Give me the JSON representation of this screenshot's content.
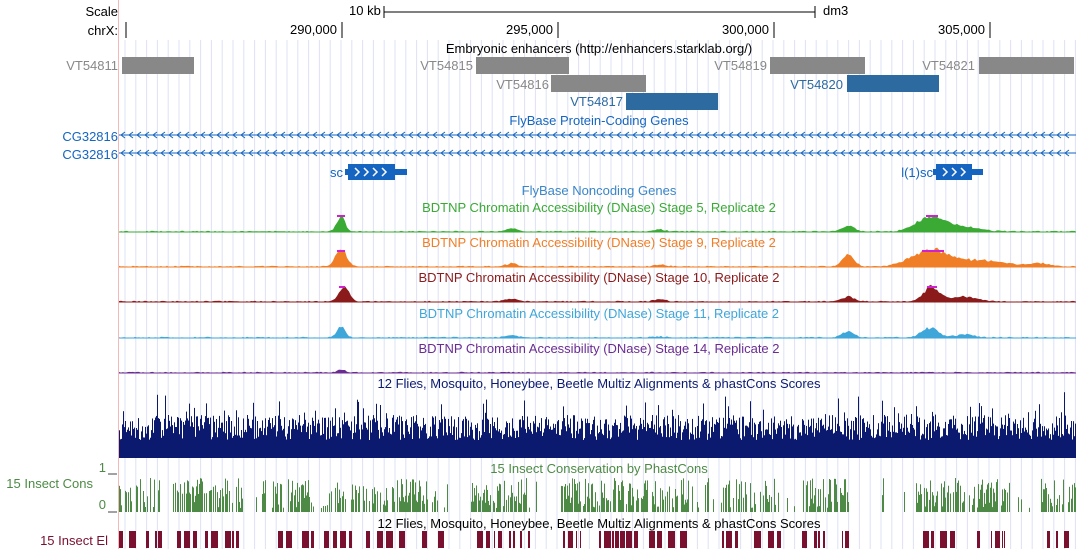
{
  "scale": {
    "label": "Scale",
    "bar_text": "10 kb",
    "assembly": "dm3"
  },
  "ruler": {
    "chrom_label": "chrX:",
    "ticks": [
      "290,000",
      "295,000",
      "300,000",
      "305,000"
    ]
  },
  "enhancers": {
    "title": "Embryonic enhancers (http://enhancers.starklab.org/)",
    "items": [
      {
        "name": "VT54811",
        "color": "#888888"
      },
      {
        "name": "VT54815",
        "color": "#888888"
      },
      {
        "name": "VT54816",
        "color": "#888888"
      },
      {
        "name": "VT54817",
        "color": "#2c6aa0"
      },
      {
        "name": "VT54819",
        "color": "#888888"
      },
      {
        "name": "VT54820",
        "color": "#2c6aa0"
      },
      {
        "name": "VT54821",
        "color": "#888888"
      }
    ]
  },
  "flybase_coding": {
    "title": "FlyBase Protein-Coding Genes",
    "rows": [
      "CG32816",
      "CG32816"
    ],
    "genes": [
      "sc",
      "l(1)sc"
    ],
    "color": "#1565c0"
  },
  "flybase_noncoding": {
    "title": "FlyBase Noncoding Genes",
    "color": "#3a86c8"
  },
  "dnase": [
    {
      "title": "BDTNP Chromatin Accessibility (DNase) Stage 5, Replicate 2",
      "color": "#3aaa35"
    },
    {
      "title": "BDTNP Chromatin Accessibility (DNase) Stage 9, Replicate 2",
      "color": "#f07e26"
    },
    {
      "title": "BDTNP Chromatin Accessibility (DNase) Stage 10, Replicate 2",
      "color": "#8b1a1a"
    },
    {
      "title": "BDTNP Chromatin Accessibility (DNase) Stage 11, Replicate 2",
      "color": "#3ea6d8"
    },
    {
      "title": "BDTNP Chromatin Accessibility (DNase) Stage 14, Replicate 2",
      "color": "#6a2c91"
    }
  ],
  "multiz": {
    "title": "12 Flies, Mosquito, Honeybee, Beetle Multiz Alignments & phastCons Scores",
    "color": "#0b1a6e"
  },
  "phastcons": {
    "title": "15 Insect Conservation by PhastCons",
    "side_label": "15 Insect Cons",
    "axis_top": "1",
    "axis_bottom": "0",
    "color": "#4d8a45"
  },
  "elements": {
    "title": "12 Flies, Mosquito, Honeybee, Beetle Multiz Alignments & phastCons Scores",
    "side_label": "15 Insect El",
    "color": "#7a1030"
  }
}
